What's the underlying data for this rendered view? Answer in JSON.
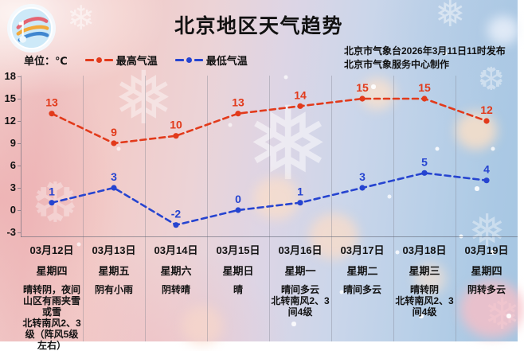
{
  "header": {
    "title": "北京地区天气趋势",
    "unit_label": "单位：℃",
    "legend": [
      {
        "label": "最高气温",
        "color": "#e23a1b"
      },
      {
        "label": "最低气温",
        "color": "#2644d0"
      }
    ],
    "publisher_line1": "北京市气象台2026年3月11日11时发布",
    "publisher_line2": "北京市气象服务中心制作"
  },
  "chart_data": {
    "type": "line",
    "title": "北京地区天气趋势",
    "unit": "℃",
    "categories": [
      "03月12日",
      "03月13日",
      "03月14日",
      "03月15日",
      "03月16日",
      "03月17日",
      "03月18日",
      "03月19日"
    ],
    "weekdays": [
      "星期四",
      "星期五",
      "星期六",
      "星期日",
      "星期一",
      "星期二",
      "星期三",
      "星期四"
    ],
    "conditions": [
      "晴转阴，夜间山区有雨夹雪或雪",
      "阴有小雨",
      "阴转晴",
      "晴",
      "晴间多云",
      "晴间多云",
      "晴转阴",
      "阴转多云"
    ],
    "winds": [
      "北转南风2、3级（阵风5级左右）",
      "",
      "",
      "",
      "北转南风2、3间4级",
      "",
      "北转南风2、3间4级",
      ""
    ],
    "series": [
      {
        "key": "max-temp",
        "name": "最高气温",
        "color": "#e23a1b",
        "values": [
          13,
          9,
          10,
          13,
          14,
          15,
          15,
          12
        ]
      },
      {
        "key": "min-temp",
        "name": "最低气温",
        "color": "#2644d0",
        "values": [
          1,
          3,
          -2,
          0,
          1,
          3,
          5,
          4
        ]
      }
    ],
    "y_ticks": [
      18,
      15,
      12,
      9,
      6,
      3,
      0,
      -3
    ],
    "ylim": [
      -3,
      18
    ],
    "grid": "vertical-only",
    "legend_position": "top-left",
    "line_style": "dashed"
  }
}
